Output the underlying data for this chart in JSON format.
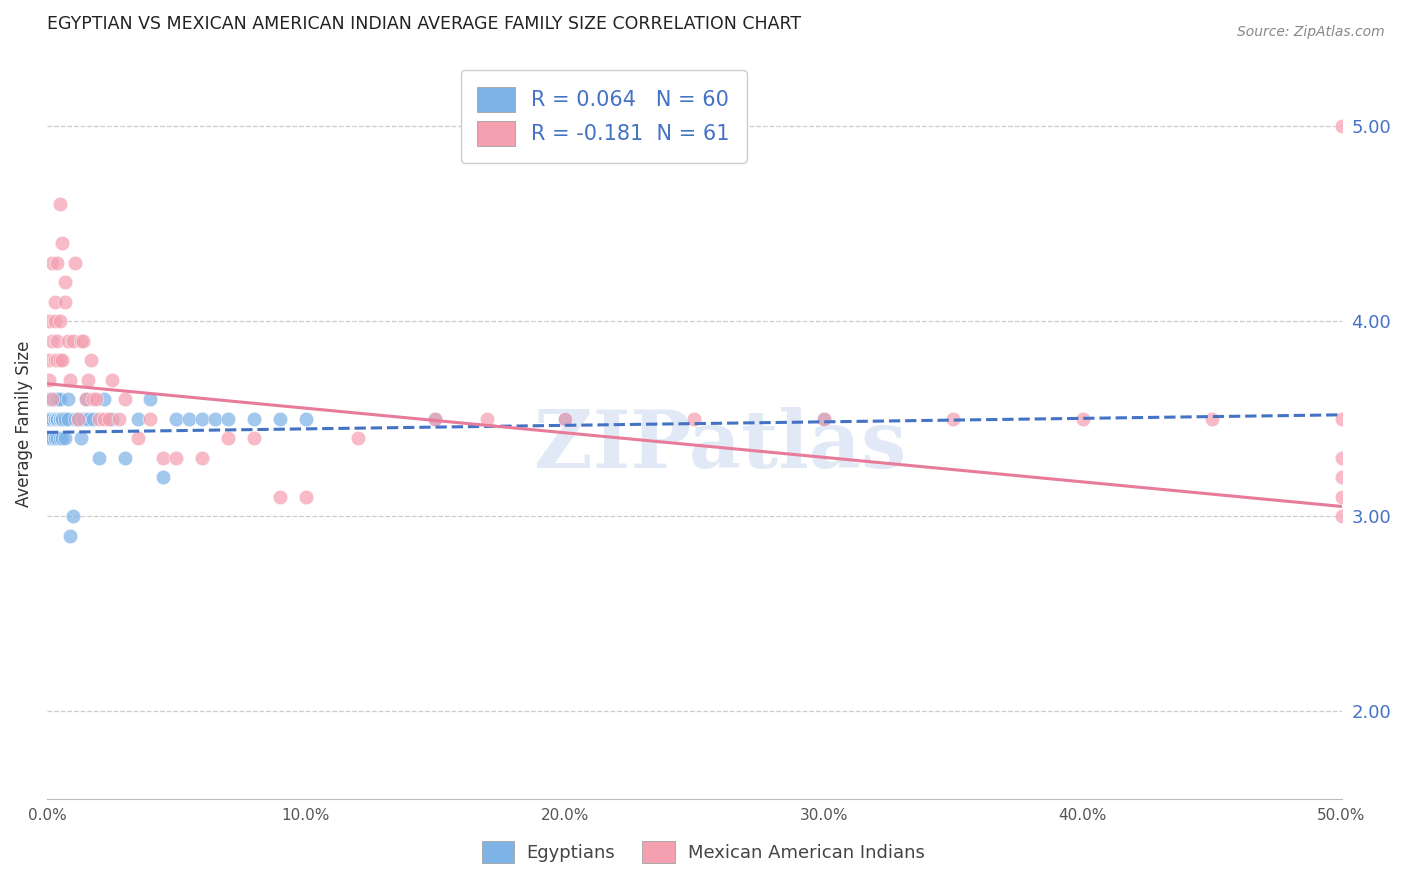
{
  "title": "EGYPTIAN VS MEXICAN AMERICAN INDIAN AVERAGE FAMILY SIZE CORRELATION CHART",
  "source": "Source: ZipAtlas.com",
  "ylabel": "Average Family Size",
  "right_yticks": [
    2.0,
    3.0,
    4.0,
    5.0
  ],
  "blue_color": "#7EB3E8",
  "pink_color": "#F4A0B0",
  "blue_line_color": "#4472C4",
  "pink_line_color": "#E87B9A",
  "watermark": "ZIPatlas",
  "blue_scatter_x": [
    0.001,
    0.001,
    0.001,
    0.001,
    0.002,
    0.002,
    0.002,
    0.002,
    0.002,
    0.003,
    0.003,
    0.003,
    0.003,
    0.003,
    0.003,
    0.004,
    0.004,
    0.004,
    0.004,
    0.004,
    0.004,
    0.005,
    0.005,
    0.005,
    0.005,
    0.005,
    0.006,
    0.006,
    0.006,
    0.007,
    0.007,
    0.008,
    0.008,
    0.009,
    0.01,
    0.011,
    0.012,
    0.013,
    0.014,
    0.015,
    0.016,
    0.018,
    0.02,
    0.022,
    0.025,
    0.03,
    0.035,
    0.04,
    0.045,
    0.05,
    0.055,
    0.06,
    0.065,
    0.07,
    0.08,
    0.09,
    0.1,
    0.15,
    0.2,
    0.3
  ],
  "blue_scatter_y": [
    3.4,
    3.5,
    3.5,
    3.6,
    3.4,
    3.5,
    3.4,
    3.6,
    3.5,
    3.5,
    3.4,
    3.6,
    3.5,
    3.5,
    3.4,
    3.5,
    3.6,
    3.4,
    3.5,
    3.5,
    3.6,
    3.5,
    3.4,
    3.5,
    3.6,
    3.5,
    3.5,
    3.4,
    3.5,
    3.5,
    3.4,
    3.6,
    3.5,
    2.9,
    3.0,
    3.5,
    3.5,
    3.4,
    3.5,
    3.6,
    3.5,
    3.5,
    3.3,
    3.6,
    3.5,
    3.3,
    3.5,
    3.6,
    3.2,
    3.5,
    3.5,
    3.5,
    3.5,
    3.5,
    3.5,
    3.5,
    3.5,
    3.5,
    3.5,
    3.5
  ],
  "pink_scatter_x": [
    0.001,
    0.001,
    0.001,
    0.002,
    0.002,
    0.002,
    0.003,
    0.003,
    0.003,
    0.004,
    0.004,
    0.004,
    0.005,
    0.005,
    0.005,
    0.006,
    0.006,
    0.007,
    0.007,
    0.008,
    0.009,
    0.01,
    0.011,
    0.012,
    0.013,
    0.014,
    0.015,
    0.016,
    0.017,
    0.018,
    0.019,
    0.02,
    0.022,
    0.024,
    0.025,
    0.028,
    0.03,
    0.035,
    0.04,
    0.045,
    0.05,
    0.06,
    0.07,
    0.08,
    0.09,
    0.1,
    0.12,
    0.15,
    0.17,
    0.2,
    0.25,
    0.3,
    0.35,
    0.4,
    0.45,
    0.5,
    0.5,
    0.5,
    0.5,
    0.5,
    0.5
  ],
  "pink_scatter_y": [
    3.8,
    4.0,
    3.7,
    4.3,
    3.9,
    3.6,
    4.1,
    4.0,
    3.8,
    3.9,
    3.8,
    4.3,
    3.8,
    4.0,
    4.6,
    3.8,
    4.4,
    4.1,
    4.2,
    3.9,
    3.7,
    3.9,
    4.3,
    3.5,
    3.9,
    3.9,
    3.6,
    3.7,
    3.8,
    3.6,
    3.6,
    3.5,
    3.5,
    3.5,
    3.7,
    3.5,
    3.6,
    3.4,
    3.5,
    3.3,
    3.3,
    3.3,
    3.4,
    3.4,
    3.1,
    3.1,
    3.4,
    3.5,
    3.5,
    3.5,
    3.5,
    3.5,
    3.5,
    3.5,
    3.5,
    3.1,
    3.2,
    3.3,
    3.0,
    3.5,
    5.0
  ],
  "blue_trend_x": [
    0.0,
    0.5
  ],
  "blue_trend_y": [
    3.43,
    3.52
  ],
  "pink_trend_x": [
    0.0,
    0.5
  ],
  "pink_trend_y": [
    3.68,
    3.05
  ],
  "xlim": [
    0.0,
    0.5
  ],
  "ylim": [
    1.55,
    5.4
  ],
  "xticks": [
    0.0,
    0.1,
    0.2,
    0.3,
    0.4,
    0.5
  ],
  "xticklabels": [
    "0.0%",
    "10.0%",
    "20.0%",
    "30.0%",
    "40.0%",
    "50.0%"
  ]
}
